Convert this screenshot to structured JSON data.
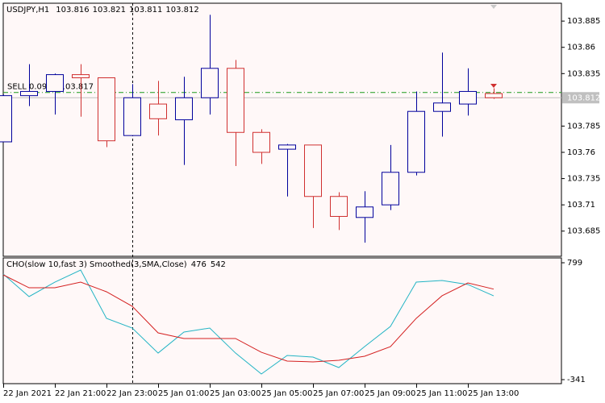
{
  "chart_data": [
    {
      "type": "candlestick",
      "title": "USDJPY,H1",
      "categories": [
        "22 Jan 2021",
        null,
        "22 Jan 21:00",
        null,
        "22 Jan 23:00",
        null,
        "25 Jan 01:00",
        null,
        "25 Jan 03:00",
        null,
        "25 Jan 05:00",
        null,
        "25 Jan 07:00",
        null,
        "25 Jan 09:00",
        null,
        "25 Jan 11:00",
        null,
        "25 Jan 13:00",
        null
      ],
      "open": [
        103.77,
        103.814,
        103.818,
        103.834,
        103.831,
        103.776,
        103.806,
        103.791,
        103.812,
        103.84,
        103.779,
        103.763,
        103.767,
        103.718,
        103.698,
        103.71,
        103.741,
        103.799,
        103.806,
        103.816
      ],
      "high": [
        103.815,
        103.844,
        103.835,
        103.844,
        103.831,
        103.825,
        103.828,
        103.832,
        103.891,
        103.848,
        103.782,
        103.768,
        103.767,
        103.722,
        103.723,
        103.767,
        103.818,
        103.855,
        103.84,
        103.821
      ],
      "low": [
        103.77,
        103.804,
        103.796,
        103.794,
        103.765,
        103.776,
        103.776,
        103.748,
        103.796,
        103.747,
        103.749,
        103.718,
        103.688,
        103.686,
        103.674,
        103.705,
        103.738,
        103.775,
        103.795,
        103.811
      ],
      "close": [
        103.814,
        103.818,
        103.834,
        103.831,
        103.771,
        103.812,
        103.792,
        103.812,
        103.84,
        103.779,
        103.76,
        103.767,
        103.718,
        103.699,
        103.708,
        103.741,
        103.799,
        103.807,
        103.818,
        103.812
      ],
      "up_color": "#00009c",
      "down_color": "#d03030",
      "ylim": [
        103.661,
        103.902
      ],
      "yticks": [
        103.685,
        103.71,
        103.735,
        103.76,
        103.785,
        103.835,
        103.86,
        103.885
      ],
      "order_line": {
        "label": "SELL 0.09 at 103.817",
        "value": 103.817,
        "color": "#1a9a1a"
      }
    },
    {
      "type": "line",
      "title": "CHO(slow 10,fast 3) Smoothed(3,SMA,Close)",
      "series": [
        {
          "color": "#22b4c4",
          "values": [
            689,
            469,
            610,
            728,
            257,
            162,
            -82,
            123,
            162,
            -82,
            -286,
            -105,
            -121,
            -223,
            -19,
            178,
            610,
            626,
            587,
            476
          ]
        },
        {
          "color": "#d42020",
          "values": [
            681,
            555,
            555,
            610,
            516,
            374,
            115,
            60,
            60,
            60,
            -74,
            -160,
            -168,
            -152,
            -113,
            -19,
            257,
            477,
            602,
            542
          ]
        }
      ],
      "ylim": [
        -341,
        799
      ],
      "yticks": [
        -341,
        799
      ]
    }
  ]
}
